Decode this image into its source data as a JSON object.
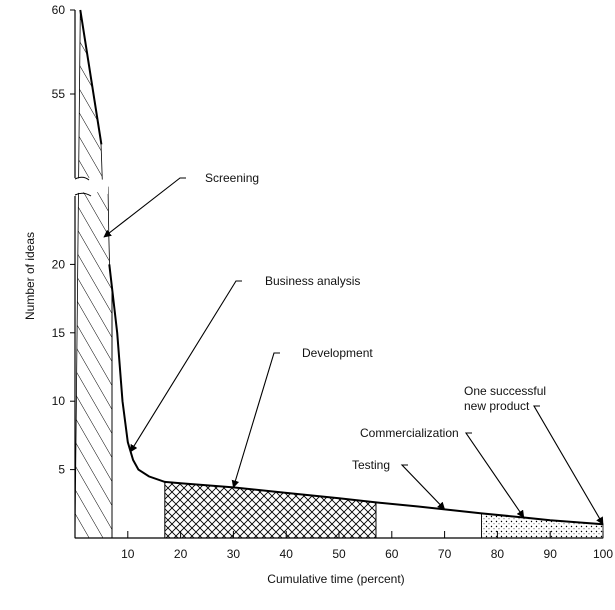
{
  "chart_data": {
    "type": "area",
    "title": "",
    "xlabel": "Cumulative time (percent)",
    "ylabel": "Number of ideas",
    "xlim": [
      0,
      100
    ],
    "ylim_lower_segment": [
      0,
      25
    ],
    "ylim_upper_segment": [
      50,
      60
    ],
    "axis_break": "y axis broken between 25 and 50",
    "grid": false,
    "x_ticks": [
      10,
      20,
      30,
      40,
      50,
      60,
      70,
      80,
      90,
      100
    ],
    "y_ticks_lower": [
      5,
      10,
      15,
      20
    ],
    "y_ticks_upper": [
      55,
      60
    ],
    "series": [
      {
        "x": [
          1,
          5,
          6.5,
          8,
          9,
          10,
          11,
          12,
          14,
          17,
          20,
          30,
          40,
          50,
          57,
          65,
          77,
          85,
          90,
          100
        ],
        "y": [
          60,
          52,
          20,
          15,
          10,
          7,
          5.7,
          5,
          4.5,
          4.1,
          4.0,
          3.7,
          3.3,
          2.9,
          2.6,
          2.3,
          1.8,
          1.5,
          1.3,
          1.0
        ]
      }
    ],
    "stages": [
      {
        "label": "Screening",
        "x_start": 0,
        "x_end": 7,
        "fill": "diagonal hatch"
      },
      {
        "label": "Business analysis",
        "x_start": 7,
        "x_end": 17,
        "fill": "none"
      },
      {
        "label": "Development",
        "x_start": 17,
        "x_end": 57,
        "fill": "crosshatch"
      },
      {
        "label": "Testing",
        "x_start": 57,
        "x_end": 77,
        "fill": "none"
      },
      {
        "label": "Commercialization",
        "x_start": 77,
        "x_end": 100,
        "fill": "stipple"
      }
    ],
    "annotations": [
      {
        "text": "Screening",
        "x": 5.5,
        "y": 22
      },
      {
        "text": "Business analysis",
        "x": 10.5,
        "y": 6.3
      },
      {
        "text": "Development",
        "x": 30,
        "y": 3.7
      },
      {
        "text": "Testing",
        "x": 70,
        "y": 2.1
      },
      {
        "text": "Commercialization",
        "x": 85,
        "y": 1.5
      },
      {
        "text": "One successful\nnew product",
        "x": 100,
        "y": 1.0
      }
    ]
  }
}
